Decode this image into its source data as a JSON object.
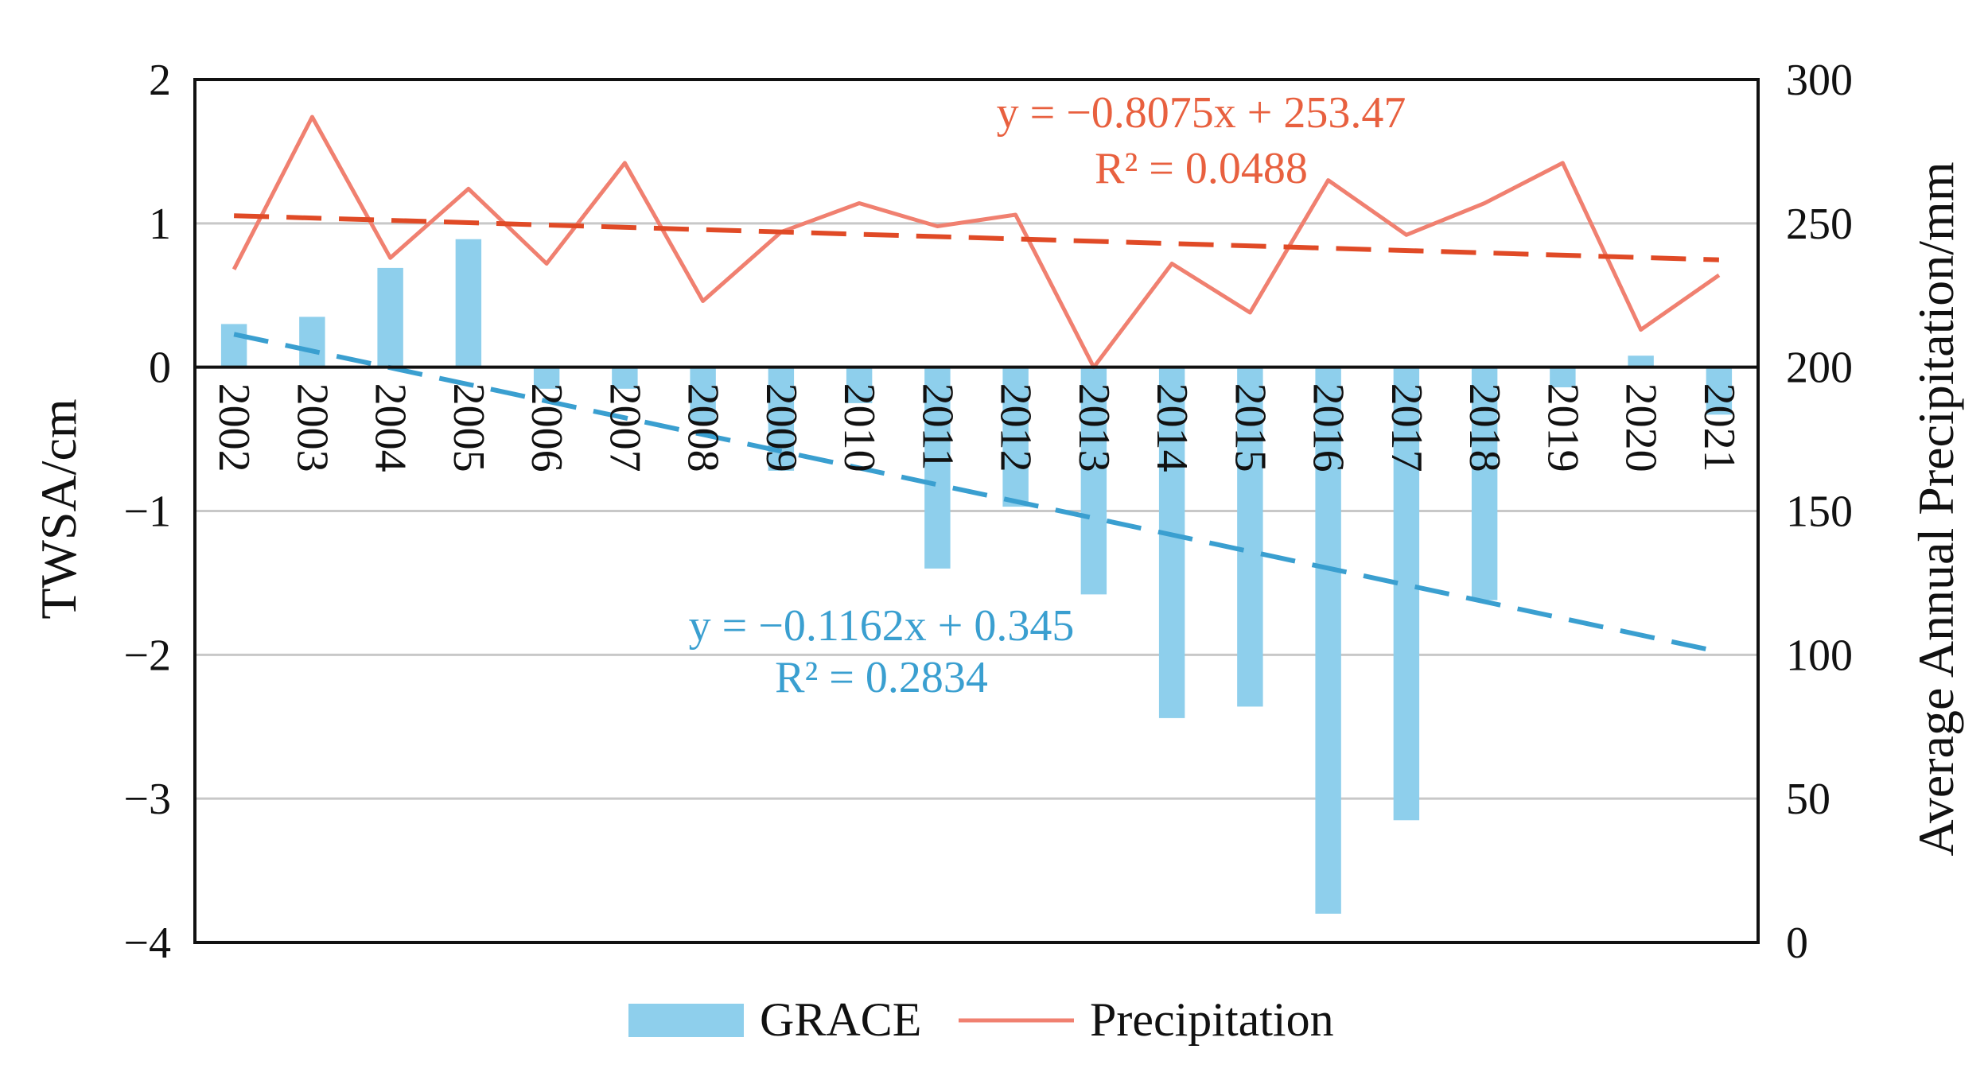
{
  "chart_data": {
    "type": "bar+line",
    "categories": [
      "2002",
      "2003",
      "2004",
      "2005",
      "2006",
      "2007",
      "2008",
      "2009",
      "2010",
      "2011",
      "2012",
      "2013",
      "2014",
      "2015",
      "2016",
      "2017",
      "2018",
      "2019",
      "2020",
      "2021"
    ],
    "series": [
      {
        "name": "GRACE",
        "type": "bar",
        "axis": "left",
        "color": "#8ecfec",
        "values": [
          0.3,
          0.35,
          0.69,
          0.89,
          -0.15,
          -0.15,
          -0.38,
          -0.72,
          -0.25,
          -1.4,
          -0.97,
          -1.58,
          -2.44,
          -2.36,
          -3.8,
          -3.15,
          -1.62,
          -0.14,
          0.08,
          -0.33
        ]
      },
      {
        "name": "Precipitation",
        "type": "line",
        "axis": "right",
        "color": "#f08070",
        "values": [
          234,
          287,
          238,
          262,
          236,
          271,
          223,
          247,
          257,
          249,
          253,
          200,
          236,
          219,
          265,
          246,
          257,
          271,
          213,
          232
        ]
      }
    ],
    "trendlines": [
      {
        "name": "GRACE trend",
        "axis": "left",
        "color": "#3a9fd0",
        "slope": -0.1162,
        "intercept": 0.345,
        "equation": "y = −0.1162x + 0.345",
        "r2": "R² = 0.2834"
      },
      {
        "name": "Precipitation trend",
        "axis": "right",
        "color": "#e04a26",
        "slope": -0.8075,
        "intercept": 253.47,
        "equation": "y = −0.8075x + 253.47",
        "r2": "R² = 0.0488"
      }
    ],
    "y_left": {
      "label": "TWSA/cm",
      "lim": [
        -4,
        2
      ],
      "ticks": [
        2,
        1,
        0,
        -1,
        -2,
        -3,
        -4
      ],
      "tick_labels": [
        "2",
        "1",
        "0",
        "−1",
        "−2",
        "−3",
        "−4"
      ]
    },
    "y_right": {
      "label": "Average Annual Precipitation/mm",
      "lim": [
        0,
        300
      ],
      "ticks": [
        300,
        250,
        200,
        150,
        100,
        50,
        0
      ],
      "tick_labels": [
        "300",
        "250",
        "200",
        "150",
        "100",
        "50",
        "0"
      ]
    },
    "grid": true,
    "legend": {
      "position": "bottom-center",
      "entries": [
        "GRACE",
        "Precipitation"
      ]
    }
  }
}
